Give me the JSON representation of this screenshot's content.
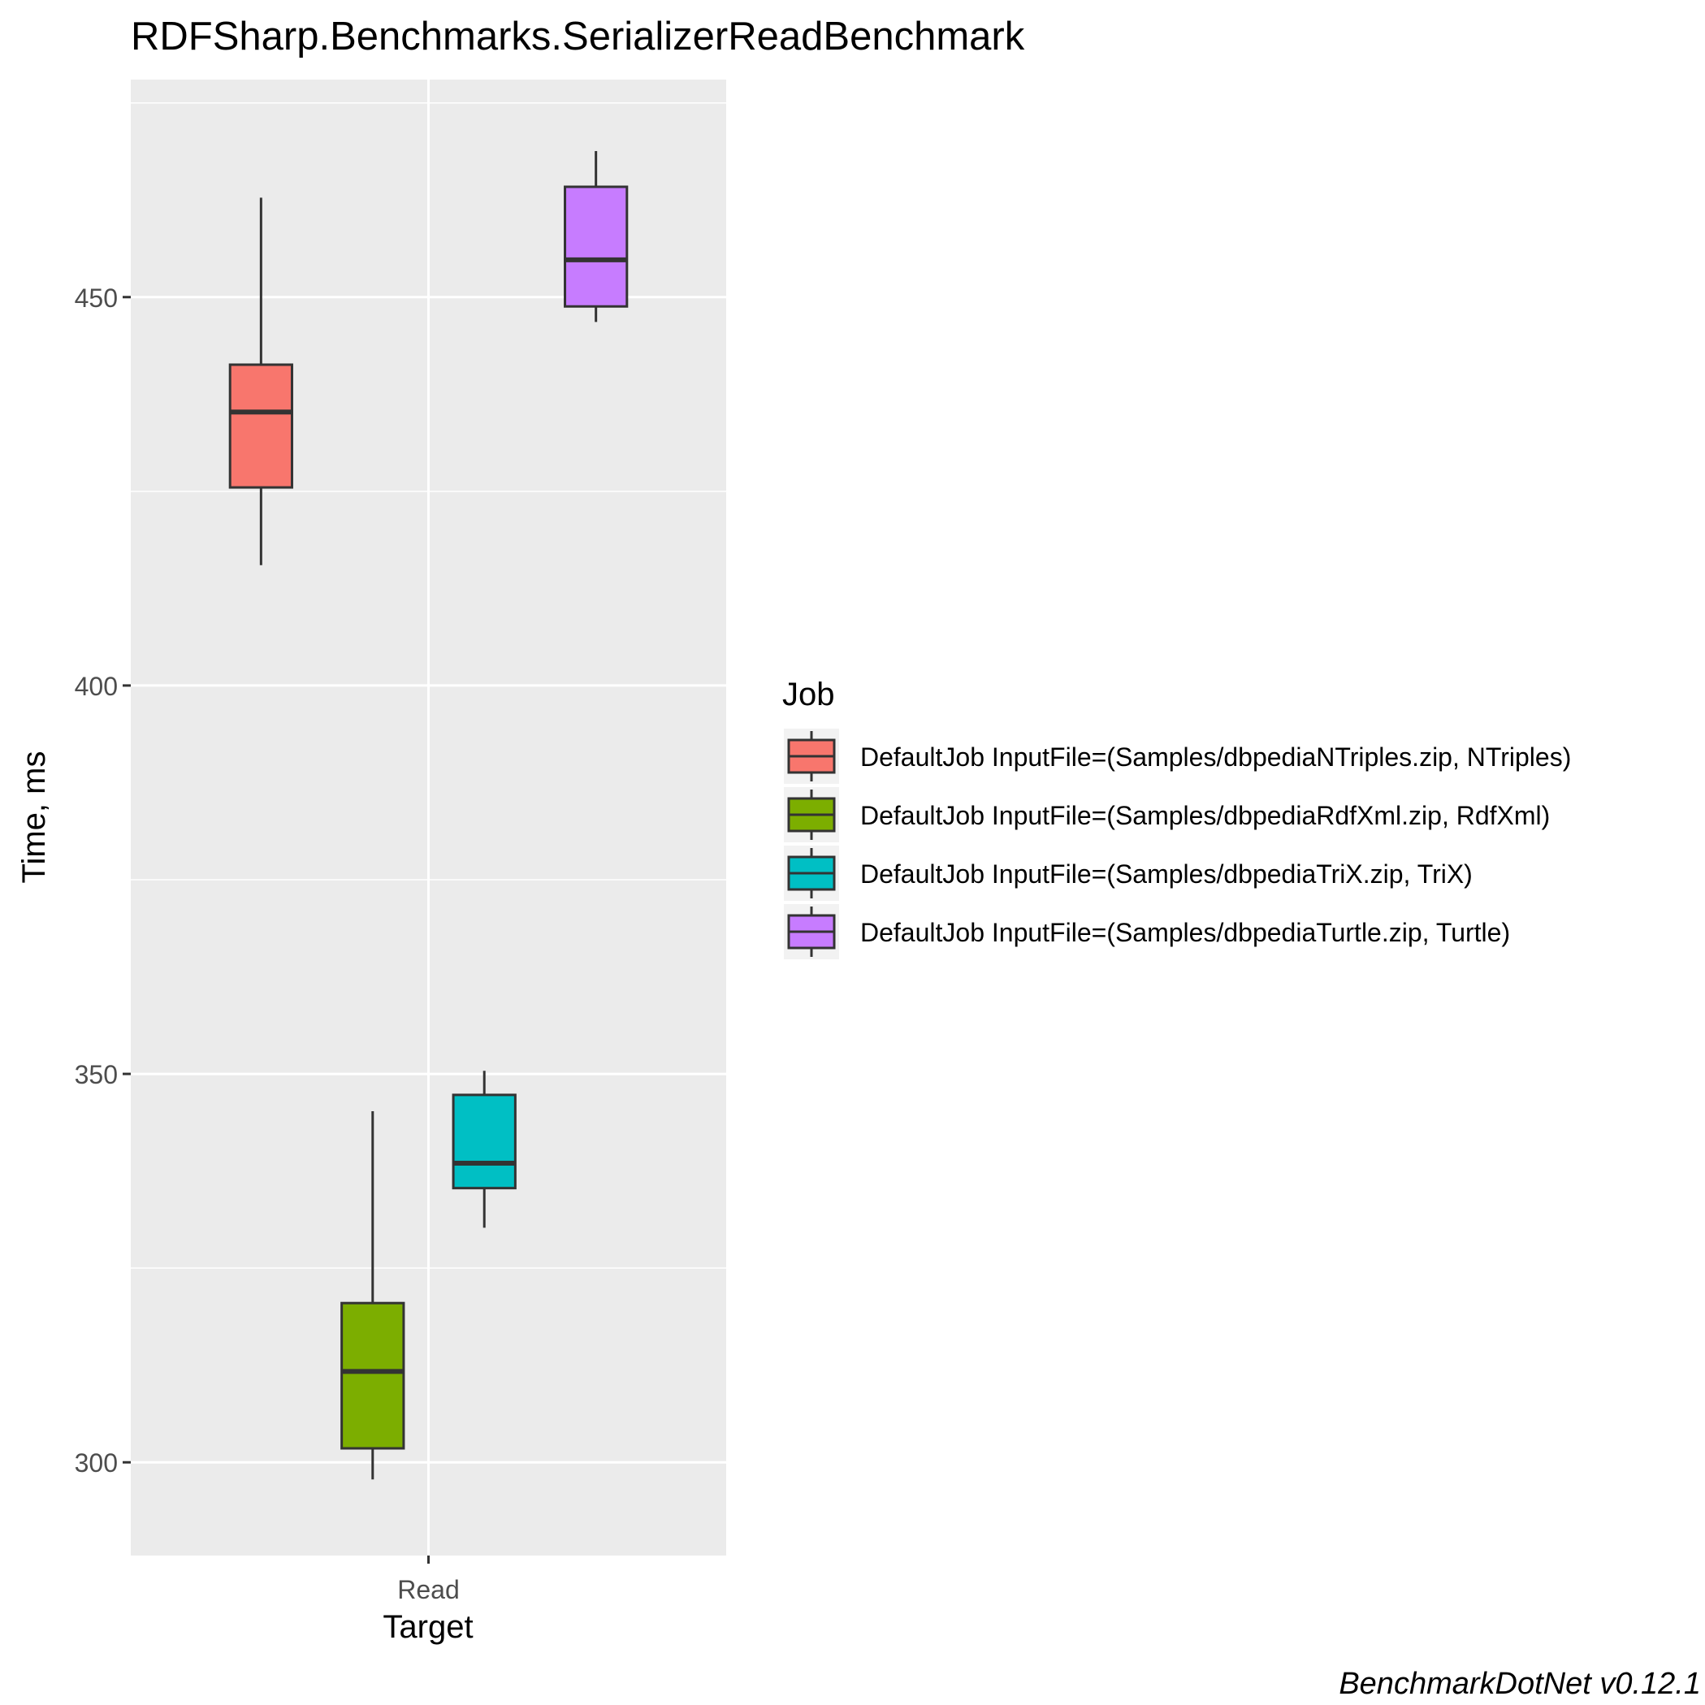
{
  "chart_data": {
    "type": "boxplot",
    "title": "RDFSharp.Benchmarks.SerializerReadBenchmark",
    "xlabel": "Target",
    "ylabel": "Time, ms",
    "caption": "BenchmarkDotNet v0.12.1",
    "categories": [
      "Read"
    ],
    "ylim": [
      288,
      478
    ],
    "yticks": [
      300,
      350,
      400,
      450
    ],
    "grid": true,
    "legend": {
      "title": "Job",
      "position": "right"
    },
    "series": [
      {
        "name": "DefaultJob InputFile=(Samples/dbpediaNTriples.zip, NTriples)",
        "color": "#F8766D",
        "category": "Read",
        "min": 415.5,
        "q1": 425.5,
        "median": 435.2,
        "q3": 441.3,
        "max": 462.8
      },
      {
        "name": "DefaultJob InputFile=(Samples/dbpediaRdfXml.zip, RdfXml)",
        "color": "#7CAE00",
        "category": "Read",
        "min": 297.8,
        "q1": 301.8,
        "median": 311.7,
        "q3": 320.5,
        "max": 345.2
      },
      {
        "name": "DefaultJob InputFile=(Samples/dbpediaTriX.zip, TriX)",
        "color": "#00BFC4",
        "category": "Read",
        "min": 330.2,
        "q1": 335.3,
        "median": 338.5,
        "q3": 347.3,
        "max": 350.4
      },
      {
        "name": "DefaultJob InputFile=(Samples/dbpediaTurtle.zip, Turtle)",
        "color": "#C77CFF",
        "category": "Read",
        "min": 446.8,
        "q1": 448.8,
        "median": 454.8,
        "q3": 464.2,
        "max": 468.8
      }
    ]
  }
}
